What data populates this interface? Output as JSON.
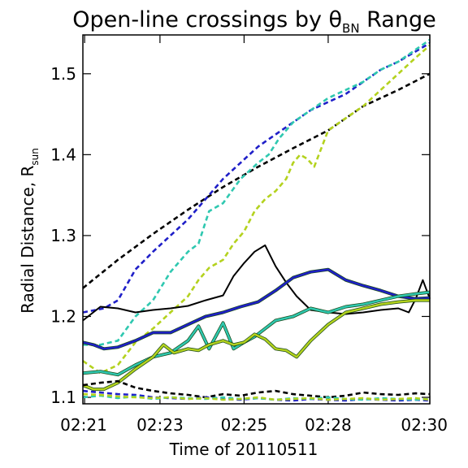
{
  "chart_data": {
    "type": "line",
    "title": {
      "main": "Open-line crossings by θ",
      "sub": "BN",
      "tail": " Range"
    },
    "xlabel": "Time of 20110511",
    "ylabel": {
      "main": "Radial Distance, R",
      "sub": "sun"
    },
    "xlim": [
      0,
      9.9
    ],
    "ylim": [
      1.092,
      1.548
    ],
    "x_ticks": [
      {
        "value": 0.05,
        "label": "02:21"
      },
      {
        "value": 2.2,
        "label": "02:23"
      },
      {
        "value": 4.6,
        "label": "02:25"
      },
      {
        "value": 7.0,
        "label": "02:28"
      },
      {
        "value": 9.9,
        "label": "02:30"
      }
    ],
    "y_ticks": [
      {
        "value": 1.1,
        "label": "1.1"
      },
      {
        "value": 1.2,
        "label": "1.2"
      },
      {
        "value": 1.3,
        "label": "1.3"
      },
      {
        "value": 1.4,
        "label": "1.4"
      },
      {
        "value": 1.5,
        "label": "1.5"
      }
    ],
    "colors": {
      "black": "#000000",
      "blue": "#1f1fc8",
      "teal": "#2fc8b0",
      "yellow": "#b4d21e"
    },
    "series": [
      {
        "color": "black",
        "style": "dashed",
        "x": [
          0,
          1,
          2,
          3,
          4,
          5,
          6,
          7,
          8,
          9,
          9.9
        ],
        "y": [
          1.235,
          1.27,
          1.302,
          1.332,
          1.36,
          1.385,
          1.408,
          1.43,
          1.46,
          1.48,
          1.5
        ]
      },
      {
        "color": "blue",
        "style": "dashed",
        "x": [
          0,
          0.6,
          1.0,
          1.5,
          2,
          2.5,
          3,
          3.5,
          4,
          4.5,
          5,
          5.5,
          6,
          6.5,
          7,
          7.5,
          8,
          8.5,
          9,
          9.9
        ],
        "y": [
          1.205,
          1.21,
          1.22,
          1.258,
          1.28,
          1.3,
          1.32,
          1.345,
          1.37,
          1.39,
          1.41,
          1.425,
          1.44,
          1.455,
          1.465,
          1.475,
          1.49,
          1.505,
          1.515,
          1.538
        ]
      },
      {
        "color": "teal",
        "style": "dashed",
        "x": [
          0,
          0.5,
          1,
          1.5,
          2,
          2.5,
          3,
          3.3,
          3.6,
          4,
          4.5,
          5,
          5.3,
          5.6,
          6,
          6.5,
          7,
          7.5,
          8,
          8.5,
          9,
          9.9
        ],
        "y": [
          1.165,
          1.165,
          1.17,
          1.2,
          1.22,
          1.255,
          1.28,
          1.29,
          1.33,
          1.34,
          1.37,
          1.39,
          1.4,
          1.42,
          1.44,
          1.455,
          1.47,
          1.48,
          1.49,
          1.505,
          1.515,
          1.542
        ]
      },
      {
        "color": "yellow",
        "style": "dashed",
        "x": [
          0,
          0.5,
          1,
          1.5,
          2,
          2.5,
          3,
          3.3,
          3.6,
          4,
          4.3,
          4.6,
          4.9,
          5.2,
          5.5,
          5.8,
          6,
          6.2,
          6.4,
          6.6,
          7,
          7.5,
          8,
          8.5,
          9,
          9.5,
          9.9
        ],
        "y": [
          1.145,
          1.13,
          1.14,
          1.168,
          1.185,
          1.205,
          1.225,
          1.245,
          1.26,
          1.27,
          1.29,
          1.305,
          1.33,
          1.345,
          1.355,
          1.37,
          1.39,
          1.4,
          1.395,
          1.385,
          1.43,
          1.445,
          1.46,
          1.48,
          1.5,
          1.52,
          1.535
        ]
      },
      {
        "color": "black",
        "style": "solid",
        "x": [
          0,
          0.5,
          1,
          1.5,
          2,
          2.5,
          3,
          3.5,
          4,
          4.3,
          4.6,
          4.9,
          5.2,
          5.5,
          5.8,
          6.1,
          6.5,
          7,
          7.5,
          8,
          8.5,
          9,
          9.3,
          9.5,
          9.7,
          9.9
        ],
        "y": [
          1.195,
          1.212,
          1.21,
          1.205,
          1.208,
          1.21,
          1.213,
          1.22,
          1.226,
          1.25,
          1.266,
          1.28,
          1.288,
          1.262,
          1.242,
          1.225,
          1.208,
          1.205,
          1.203,
          1.205,
          1.208,
          1.21,
          1.205,
          1.222,
          1.245,
          1.222
        ]
      },
      {
        "color": "blue",
        "style": "solid",
        "x": [
          0,
          0.3,
          0.6,
          1,
          1.5,
          2,
          2.5,
          3,
          3.5,
          4,
          4.5,
          5,
          5.5,
          6,
          6.5,
          7,
          7.5,
          8,
          8.5,
          9,
          9.5,
          9.9
        ],
        "y": [
          1.168,
          1.165,
          1.16,
          1.162,
          1.17,
          1.18,
          1.18,
          1.19,
          1.2,
          1.205,
          1.212,
          1.218,
          1.232,
          1.248,
          1.255,
          1.258,
          1.245,
          1.238,
          1.232,
          1.225,
          1.222,
          1.223
        ]
      },
      {
        "color": "teal",
        "style": "solid",
        "x": [
          0,
          0.5,
          1,
          1.5,
          2,
          2.5,
          3,
          3.3,
          3.6,
          4,
          4.3,
          4.6,
          4.9,
          5.2,
          5.5,
          6,
          6.5,
          7,
          7.5,
          8,
          8.5,
          9,
          9.5,
          9.9
        ],
        "y": [
          1.13,
          1.132,
          1.128,
          1.14,
          1.15,
          1.155,
          1.17,
          1.188,
          1.16,
          1.192,
          1.16,
          1.168,
          1.175,
          1.185,
          1.195,
          1.2,
          1.21,
          1.205,
          1.212,
          1.215,
          1.22,
          1.225,
          1.228,
          1.23
        ]
      },
      {
        "color": "yellow",
        "style": "solid",
        "x": [
          0,
          0.3,
          0.6,
          1,
          1.5,
          2,
          2.3,
          2.6,
          3,
          3.3,
          3.6,
          4,
          4.3,
          4.6,
          4.9,
          5.2,
          5.5,
          5.8,
          6.1,
          6.5,
          7,
          7.5,
          8,
          8.5,
          9,
          9.5,
          9.9
        ],
        "y": [
          1.115,
          1.11,
          1.11,
          1.118,
          1.135,
          1.15,
          1.165,
          1.155,
          1.16,
          1.158,
          1.165,
          1.17,
          1.165,
          1.168,
          1.178,
          1.172,
          1.16,
          1.158,
          1.15,
          1.17,
          1.19,
          1.205,
          1.21,
          1.215,
          1.218,
          1.22,
          1.22
        ]
      },
      {
        "color": "black",
        "style": "dashed",
        "x": [
          0,
          0.5,
          1,
          1.5,
          2,
          2.5,
          3,
          3.5,
          4,
          4.5,
          5,
          5.5,
          6,
          6.5,
          7,
          7.5,
          8,
          8.5,
          9,
          9.5,
          9.9
        ],
        "y": [
          1.115,
          1.118,
          1.12,
          1.112,
          1.108,
          1.105,
          1.103,
          1.1,
          1.104,
          1.102,
          1.106,
          1.108,
          1.104,
          1.102,
          1.1,
          1.102,
          1.106,
          1.104,
          1.103,
          1.105,
          1.104
        ]
      },
      {
        "color": "blue",
        "style": "dashed",
        "x": [
          0,
          0.5,
          1,
          1.5,
          2,
          2.5,
          3,
          3.5,
          4,
          4.5,
          5,
          5.5,
          6,
          6.5,
          7,
          7.5,
          8,
          8.5,
          9,
          9.5,
          9.9
        ],
        "y": [
          1.108,
          1.106,
          1.104,
          1.103,
          1.1,
          1.099,
          1.098,
          1.1,
          1.098,
          1.097,
          1.099,
          1.097,
          1.096,
          1.098,
          1.097,
          1.096,
          1.098,
          1.097,
          1.096,
          1.097,
          1.096
        ]
      },
      {
        "color": "teal",
        "style": "dashed",
        "x": [
          0,
          0.5,
          1,
          1.5,
          2,
          2.5,
          3,
          3.5,
          4,
          4.5,
          5,
          5.5,
          6,
          6.5,
          7,
          7.5,
          8,
          8.5,
          9,
          9.5,
          9.9
        ],
        "y": [
          1.1,
          1.102,
          1.099,
          1.101,
          1.098,
          1.1,
          1.099,
          1.098,
          1.1,
          1.098,
          1.099,
          1.097,
          1.099,
          1.098,
          1.1,
          1.098,
          1.097,
          1.099,
          1.098,
          1.097,
          1.098
        ]
      },
      {
        "color": "yellow",
        "style": "dashed",
        "x": [
          0,
          0.5,
          1,
          1.5,
          2,
          2.5,
          3,
          3.5,
          4,
          4.5,
          5,
          5.5,
          6,
          6.5,
          7,
          7.5,
          8,
          8.5,
          9,
          9.5,
          9.9
        ],
        "y": [
          1.104,
          1.103,
          1.101,
          1.1,
          1.099,
          1.1,
          1.098,
          1.099,
          1.097,
          1.098,
          1.1,
          1.097,
          1.098,
          1.099,
          1.097,
          1.098,
          1.099,
          1.097,
          1.098,
          1.099,
          1.097
        ]
      }
    ]
  }
}
